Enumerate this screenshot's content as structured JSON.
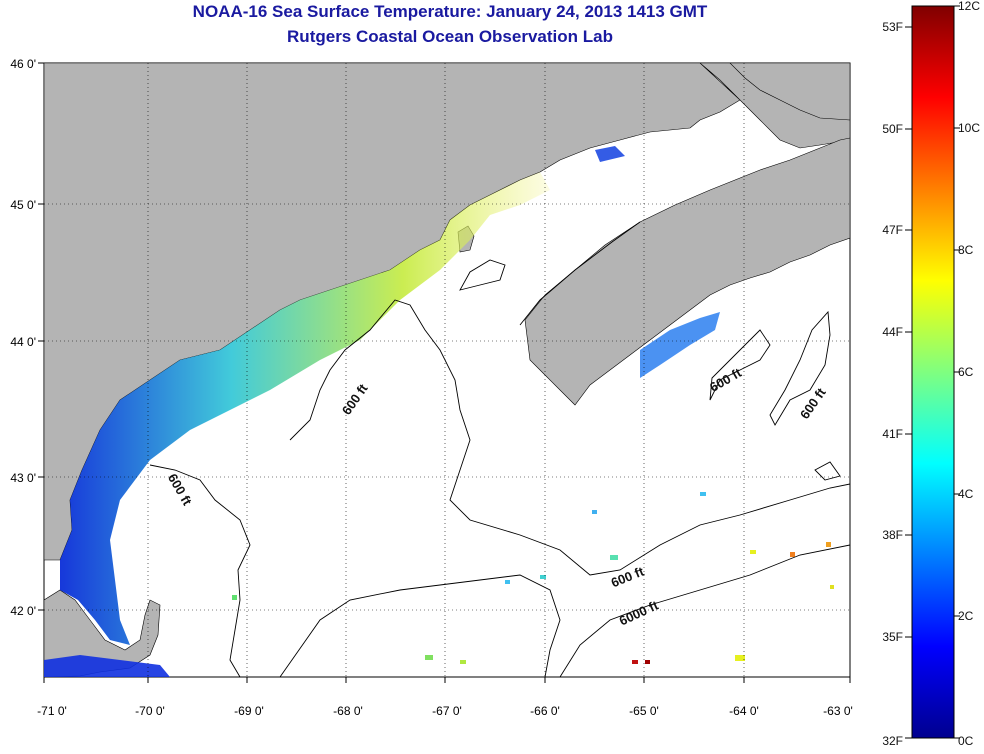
{
  "title": "NOAA-16 Sea Surface Temperature:  January 24, 2013 1413 GMT",
  "subtitle": "Rutgers Coastal Ocean Observation Lab",
  "x_ticks": [
    "-71 0'",
    "-70 0'",
    "-69 0'",
    "-68 0'",
    "-67 0'",
    "-66 0'",
    "-65 0'",
    "-64 0'",
    "-63 0'"
  ],
  "y_ticks": [
    "46 0'",
    "45 0'",
    "44 0'",
    "43 0'",
    "42 0'"
  ],
  "contour_labels": [
    "600 ft",
    "600 ft",
    "600 ft",
    "600 ft",
    "600 ft",
    "6000 ft"
  ],
  "colorbar": {
    "fahrenheit": [
      "53F",
      "50F",
      "47F",
      "44F",
      "41F",
      "38F",
      "35F",
      "32F"
    ],
    "celsius": [
      "12C",
      "10C",
      "8C",
      "6C",
      "4C",
      "2C",
      "0C"
    ]
  },
  "colors": {
    "land": "#b4b4b4",
    "title": "#1a1aa0",
    "no_data": "#ffffff"
  }
}
